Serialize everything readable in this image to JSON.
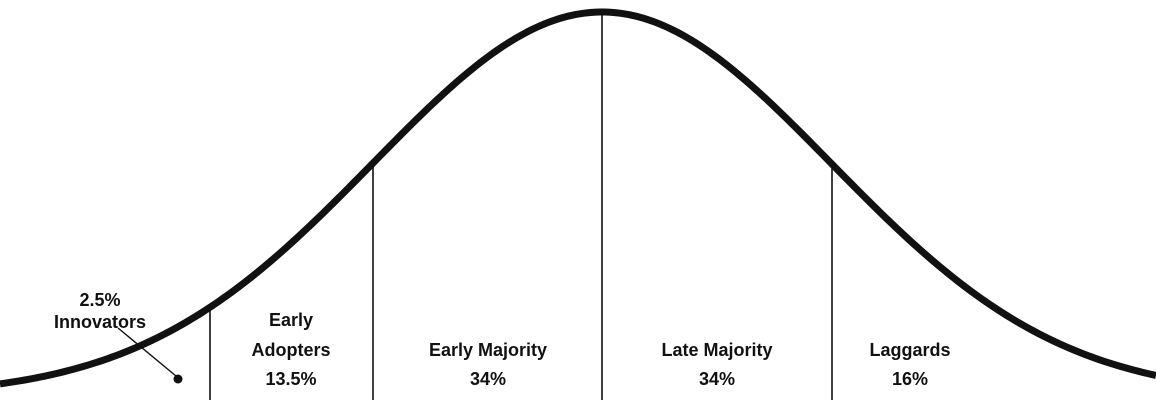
{
  "segments": [
    {
      "name_lines": [
        "Innovators"
      ],
      "share": "2.5%"
    },
    {
      "name_lines": [
        "Early",
        "Adopters"
      ],
      "share": "13.5%"
    },
    {
      "name_lines": [
        "Early Majority"
      ],
      "share": "34%"
    },
    {
      "name_lines": [
        "Late Majority"
      ],
      "share": "34%"
    },
    {
      "name_lines": [
        "Laggards"
      ],
      "share": "16%"
    }
  ]
}
